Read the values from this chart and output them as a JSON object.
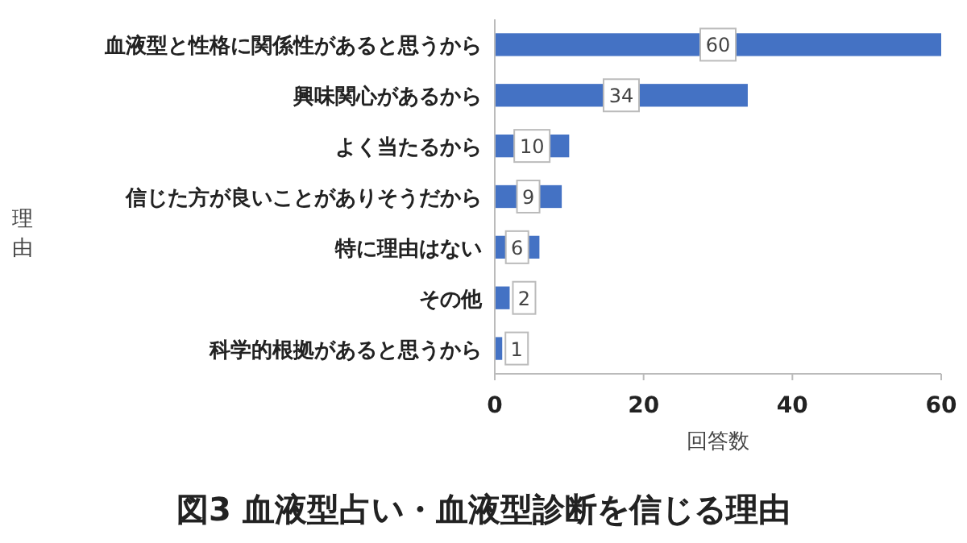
{
  "chart_data": {
    "type": "bar",
    "orientation": "horizontal",
    "title": "図3 血液型占い・血液型診断を信じる理由",
    "xlabel": "回答数",
    "ylabel": "理由",
    "categories": [
      "血液型と性格に関係性があると思うから",
      "興味関心があるから",
      "よく当たるから",
      "信じた方が良いことがありそうだから",
      "特に理由はない",
      "その他",
      "科学的根拠があると思うから"
    ],
    "values": [
      60,
      34,
      10,
      9,
      6,
      2,
      1
    ],
    "color": "#4472c4",
    "xlim": [
      0,
      60
    ],
    "xticks": [
      0,
      20,
      40,
      60
    ],
    "data_labels": true
  }
}
